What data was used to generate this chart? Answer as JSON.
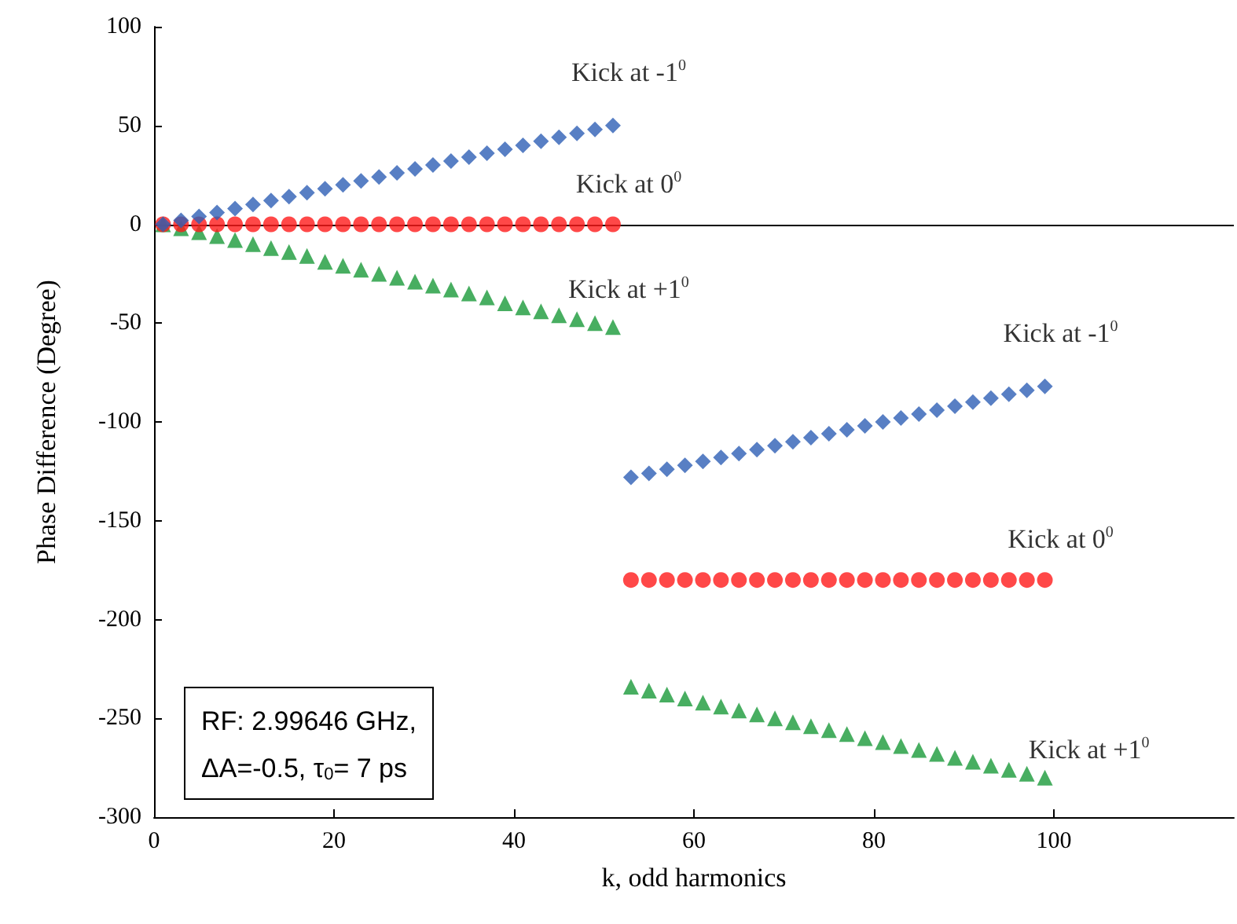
{
  "chart_data": {
    "type": "scatter",
    "xlabel": "k, odd harmonics",
    "ylabel": "Phase Difference (Degree)",
    "xlim": [
      0,
      120
    ],
    "xticks": [
      0,
      20,
      40,
      60,
      80,
      100
    ],
    "ylim": [
      -300,
      100
    ],
    "yticks": [
      -300,
      -250,
      -200,
      -150,
      -100,
      -50,
      0,
      50,
      100
    ],
    "grid": false,
    "ref_lines": [
      {
        "axis": "y",
        "value": 0,
        "color": "#000000"
      }
    ],
    "series": [
      {
        "name": "Kick at -1$^{0}$",
        "color": "#2e5fb5",
        "marker": "diamond",
        "x": [
          1,
          3,
          5,
          7,
          9,
          11,
          13,
          15,
          17,
          19,
          21,
          23,
          25,
          27,
          29,
          31,
          33,
          35,
          37,
          39,
          41,
          43,
          45,
          47,
          49,
          51
        ],
        "values": [
          0,
          2,
          4,
          6,
          8,
          10,
          12,
          14,
          16,
          18,
          20,
          22,
          24,
          26,
          28,
          30,
          32,
          34,
          36,
          38,
          40,
          42,
          44,
          46,
          48,
          50
        ]
      },
      {
        "name": "Kick at 0$^{0}$",
        "color": "#ff1a1a",
        "marker": "circle",
        "x": [
          1,
          3,
          5,
          7,
          9,
          11,
          13,
          15,
          17,
          19,
          21,
          23,
          25,
          27,
          29,
          31,
          33,
          35,
          37,
          39,
          41,
          43,
          45,
          47,
          49,
          51
        ],
        "values": [
          0,
          0,
          0,
          0,
          0,
          0,
          0,
          0,
          0,
          0,
          0,
          0,
          0,
          0,
          0,
          0,
          0,
          0,
          0,
          0,
          0,
          0,
          0,
          0,
          0,
          0
        ]
      },
      {
        "name": "Kick at +1$^{0}$",
        "color": "#1a9a3a",
        "marker": "triangle",
        "x": [
          1,
          3,
          5,
          7,
          9,
          11,
          13,
          15,
          17,
          19,
          21,
          23,
          25,
          27,
          29,
          31,
          33,
          35,
          37,
          39,
          41,
          43,
          45,
          47,
          49,
          51
        ],
        "values": [
          0,
          -2,
          -4,
          -6,
          -8,
          -10,
          -12,
          -14,
          -16,
          -19,
          -21,
          -23,
          -25,
          -27,
          -29,
          -31,
          -33,
          -35,
          -37,
          -40,
          -42,
          -44,
          -46,
          -48,
          -50,
          -52
        ]
      },
      {
        "name": "Kick at -1$^{0}$",
        "color": "#2e5fb5",
        "marker": "diamond",
        "x": [
          53,
          55,
          57,
          59,
          61,
          63,
          65,
          67,
          69,
          71,
          73,
          75,
          77,
          79,
          81,
          83,
          85,
          87,
          89,
          91,
          93,
          95,
          97,
          99
        ],
        "values": [
          -128,
          -126,
          -124,
          -122,
          -120,
          -118,
          -116,
          -114,
          -112,
          -110,
          -108,
          -106,
          -104,
          -102,
          -100,
          -98,
          -96,
          -94,
          -92,
          -90,
          -88,
          -86,
          -84,
          -82
        ]
      },
      {
        "name": "Kick at 0$^{0}$",
        "color": "#ff1a1a",
        "marker": "circle",
        "x": [
          53,
          55,
          57,
          59,
          61,
          63,
          65,
          67,
          69,
          71,
          73,
          75,
          77,
          79,
          81,
          83,
          85,
          87,
          89,
          91,
          93,
          95,
          97,
          99
        ],
        "values": [
          -180,
          -180,
          -180,
          -180,
          -180,
          -180,
          -180,
          -180,
          -180,
          -180,
          -180,
          -180,
          -180,
          -180,
          -180,
          -180,
          -180,
          -180,
          -180,
          -180,
          -180,
          -180,
          -180,
          -180
        ]
      },
      {
        "name": "Kick at +1$^{0}$",
        "color": "#1a9a3a",
        "marker": "triangle",
        "x": [
          53,
          55,
          57,
          59,
          61,
          63,
          65,
          67,
          69,
          71,
          73,
          75,
          77,
          79,
          81,
          83,
          85,
          87,
          89,
          91,
          93,
          95,
          97,
          99
        ],
        "values": [
          -234,
          -236,
          -238,
          -240,
          -242,
          -244,
          -246,
          -248,
          -250,
          -252,
          -254,
          -256,
          -258,
          -260,
          -262,
          -264,
          -266,
          -268,
          -270,
          -272,
          -274,
          -276,
          -278,
          -280
        ]
      }
    ],
    "annotations": [
      "RF: 2.99646 GHz,\nΔA=-0.5, τ$_{0}$= 7 ps"
    ]
  }
}
